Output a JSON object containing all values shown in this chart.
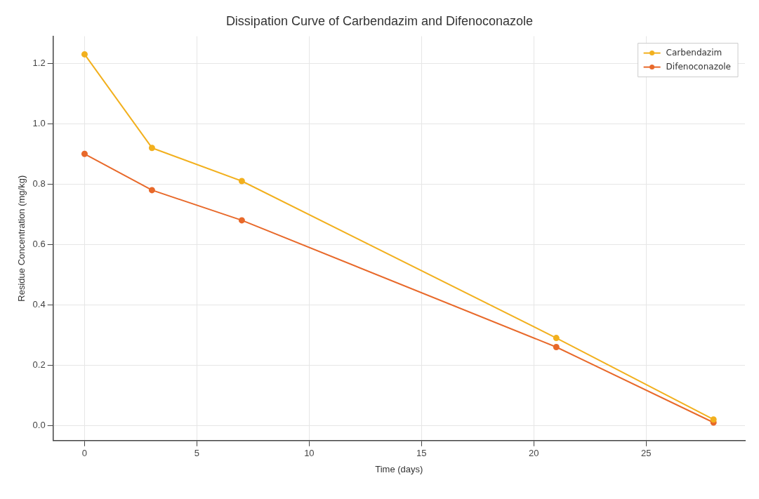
{
  "chart_data": {
    "type": "line",
    "title": "Dissipation Curve of Carbendazim and Difenoconazole",
    "xlabel": "Time (days)",
    "ylabel": "Residue Concentration (mg/kg)",
    "x": [
      0,
      3,
      7,
      21,
      28
    ],
    "series": [
      {
        "name": "Carbendazim",
        "color": "#f2b01e",
        "values": [
          1.23,
          0.92,
          0.81,
          0.29,
          0.02
        ]
      },
      {
        "name": "Difenoconazole",
        "color": "#e8692a",
        "values": [
          0.9,
          0.78,
          0.68,
          0.26,
          0.01
        ]
      }
    ],
    "xlim": [
      -1.4,
      29.4
    ],
    "xticks": [
      0,
      5,
      10,
      15,
      20,
      25
    ],
    "ylim": [
      -0.05,
      1.29
    ],
    "yticks": [
      {
        "value": 0,
        "label": "0.0"
      },
      0.2,
      0.4,
      0.6,
      0.8,
      {
        "value": 1,
        "label": "1.0"
      },
      1.2
    ],
    "grid": true,
    "legend": "top right",
    "marker": "circle",
    "line_style": "solid"
  }
}
